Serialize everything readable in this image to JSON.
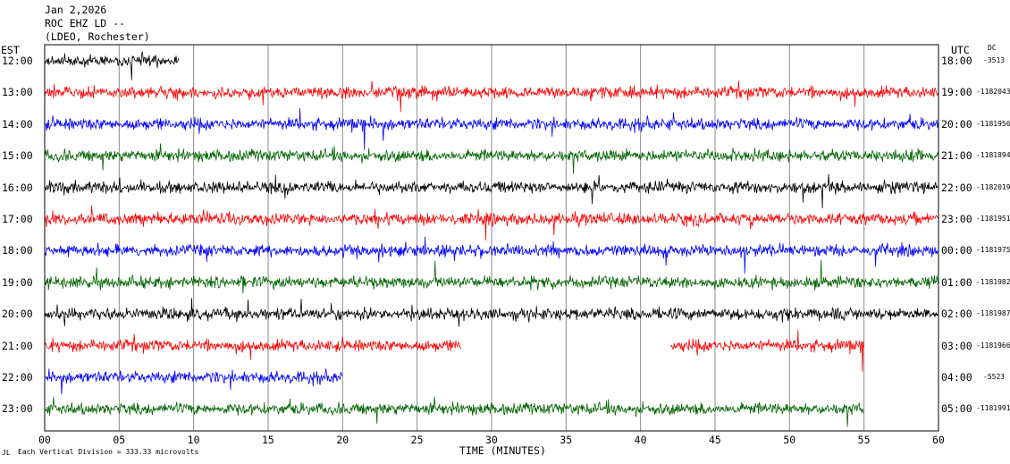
{
  "header": {
    "date": "Jan 2,2026",
    "station": "ROC EHZ LD --",
    "network": "(LDEO, Rochester)"
  },
  "left_axis_title": "EST",
  "right_axis_title": "UTC",
  "dc_title": "DC",
  "footer_scale": "Each Vertical Division = 333.33 microvolts",
  "footer_corner": "JL",
  "chart_data": {
    "type": "line",
    "title": "Jan 2,2026",
    "xlabel": "TIME (MINUTES)",
    "xlim": [
      0,
      60
    ],
    "x_ticks": [
      "00",
      "05",
      "10",
      "15",
      "20",
      "25",
      "30",
      "35",
      "40",
      "45",
      "50",
      "55",
      "60"
    ],
    "grid": "vertical lines every 5 minutes",
    "colors": {
      "black": "#000000",
      "red": "#ff0000",
      "blue": "#0000ff",
      "green": "#006400",
      "trace_cycle": [
        "black",
        "red",
        "blue",
        "green"
      ]
    },
    "series": [
      {
        "est": "12:00",
        "utc": "18:00",
        "dc": "-3513",
        "color": "black",
        "minutes": [
          0,
          9
        ]
      },
      {
        "est": "13:00",
        "utc": "19:00",
        "dc": "-1182043",
        "color": "red",
        "minutes": [
          0,
          60
        ]
      },
      {
        "est": "14:00",
        "utc": "20:00",
        "dc": "-1181956",
        "color": "blue",
        "minutes": [
          0,
          60
        ]
      },
      {
        "est": "15:00",
        "utc": "21:00",
        "dc": "-1181894",
        "color": "green",
        "minutes": [
          0,
          60
        ]
      },
      {
        "est": "16:00",
        "utc": "22:00",
        "dc": "-1182019",
        "color": "black",
        "minutes": [
          0,
          60
        ]
      },
      {
        "est": "17:00",
        "utc": "23:00",
        "dc": "-1181951",
        "color": "red",
        "minutes": [
          0,
          60
        ]
      },
      {
        "est": "18:00",
        "utc": "00:00",
        "dc": "-1181975",
        "color": "blue",
        "minutes": [
          0,
          60
        ]
      },
      {
        "est": "19:00",
        "utc": "01:00",
        "dc": "-1181982",
        "color": "green",
        "minutes": [
          0,
          60
        ]
      },
      {
        "est": "20:00",
        "utc": "02:00",
        "dc": "-1181987",
        "color": "black",
        "minutes": [
          0,
          60
        ]
      },
      {
        "est": "21:00",
        "utc": "03:00",
        "dc": "-1181966",
        "color": "red",
        "minutes": [
          [
            0,
            28
          ],
          [
            42,
            55
          ]
        ]
      },
      {
        "est": "22:00",
        "utc": "04:00",
        "dc": "-5523",
        "color": "blue",
        "minutes": [
          0,
          20
        ]
      },
      {
        "est": "23:00",
        "utc": "05:00",
        "dc": "-1181991",
        "color": "green",
        "minutes": [
          0,
          55
        ]
      }
    ]
  }
}
